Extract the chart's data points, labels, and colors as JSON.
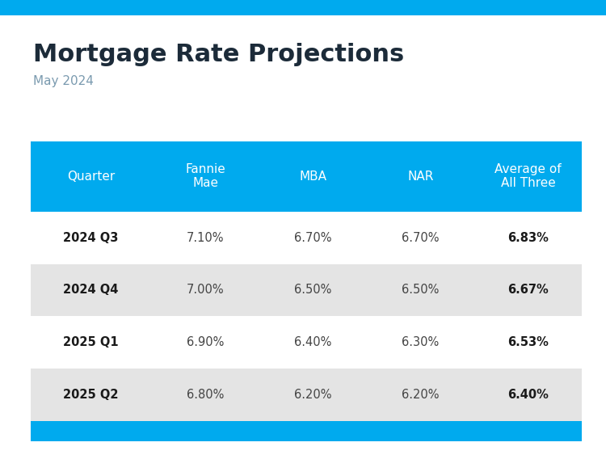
{
  "title": "Mortgage Rate Projections",
  "subtitle": "May 2024",
  "title_fontsize": 22,
  "subtitle_fontsize": 11,
  "columns": [
    "Quarter",
    "Fannie\nMae",
    "MBA",
    "NAR",
    "Average of\nAll Three"
  ],
  "rows": [
    [
      "2024 Q3",
      "7.10%",
      "6.70%",
      "6.70%",
      "6.83%"
    ],
    [
      "2024 Q4",
      "7.00%",
      "6.50%",
      "6.50%",
      "6.67%"
    ],
    [
      "2025 Q1",
      "6.90%",
      "6.40%",
      "6.30%",
      "6.53%"
    ],
    [
      "2025 Q2",
      "6.80%",
      "6.20%",
      "6.20%",
      "6.40%"
    ]
  ],
  "header_bg": "#00AAEE",
  "header_text_color": "#FFFFFF",
  "row_bg_even": "#FFFFFF",
  "row_bg_odd": "#E4E4E4",
  "data_text_color": "#444444",
  "quarter_text_color": "#1a1a1a",
  "avg_text_color": "#1a1a1a",
  "footer_bar_color": "#00AAEE",
  "top_bar_color": "#00AAEE",
  "bg_color": "#FFFFFF",
  "title_color": "#1C2B39",
  "subtitle_color": "#7A9AAF"
}
